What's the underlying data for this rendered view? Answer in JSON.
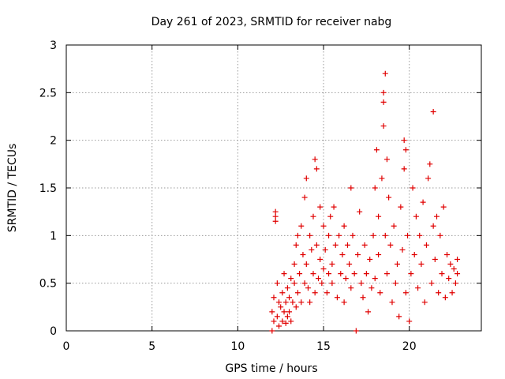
{
  "chart_data": {
    "type": "scatter",
    "title": "Day 261 of 2023, SRMTID for receiver nabg",
    "xlabel": "GPS time / hours",
    "ylabel": "SRMTID / TECUs",
    "xlim": [
      0,
      24.2
    ],
    "ylim": [
      0,
      3
    ],
    "xticks": [
      0,
      5,
      10,
      15,
      20
    ],
    "yticks": [
      0,
      0.5,
      1,
      1.5,
      2,
      2.5,
      3
    ],
    "xtick_labels": [
      "0",
      "5",
      "10",
      "15",
      "20"
    ],
    "ytick_labels": [
      "0",
      "0.5",
      "1",
      "1.5",
      "2",
      "2.5",
      "3"
    ],
    "grid": true,
    "marker": "+",
    "color": "#e00000",
    "series": [
      {
        "name": "SRMTID",
        "points": [
          [
            12.0,
            0.0
          ],
          [
            12.0,
            0.2
          ],
          [
            12.1,
            0.1
          ],
          [
            12.1,
            0.35
          ],
          [
            12.2,
            1.2
          ],
          [
            12.2,
            1.25
          ],
          [
            12.2,
            1.15
          ],
          [
            12.3,
            0.5
          ],
          [
            12.3,
            0.15
          ],
          [
            12.4,
            0.3
          ],
          [
            12.4,
            0.05
          ],
          [
            12.5,
            0.25
          ],
          [
            12.6,
            0.4
          ],
          [
            12.6,
            0.1
          ],
          [
            12.7,
            0.2
          ],
          [
            12.7,
            0.6
          ],
          [
            12.8,
            0.3
          ],
          [
            12.8,
            0.08
          ],
          [
            12.9,
            0.45
          ],
          [
            12.9,
            0.15
          ],
          [
            13.0,
            0.35
          ],
          [
            13.0,
            0.2
          ],
          [
            13.1,
            0.55
          ],
          [
            13.1,
            0.1
          ],
          [
            13.2,
            0.3
          ],
          [
            13.3,
            0.5
          ],
          [
            13.3,
            0.7
          ],
          [
            13.4,
            0.25
          ],
          [
            13.4,
            0.9
          ],
          [
            13.5,
            0.4
          ],
          [
            13.5,
            1.0
          ],
          [
            13.6,
            0.6
          ],
          [
            13.7,
            0.3
          ],
          [
            13.7,
            1.1
          ],
          [
            13.8,
            0.8
          ],
          [
            13.9,
            0.5
          ],
          [
            13.9,
            1.4
          ],
          [
            14.0,
            0.7
          ],
          [
            14.0,
            1.6
          ],
          [
            14.1,
            0.45
          ],
          [
            14.2,
            1.0
          ],
          [
            14.2,
            0.3
          ],
          [
            14.3,
            0.85
          ],
          [
            14.4,
            1.2
          ],
          [
            14.4,
            0.6
          ],
          [
            14.5,
            1.8
          ],
          [
            14.5,
            0.4
          ],
          [
            14.6,
            1.7
          ],
          [
            14.6,
            0.9
          ],
          [
            14.7,
            0.55
          ],
          [
            14.8,
            1.3
          ],
          [
            14.8,
            0.75
          ],
          [
            14.9,
            0.5
          ],
          [
            15.0,
            1.1
          ],
          [
            15.0,
            0.65
          ],
          [
            15.1,
            0.85
          ],
          [
            15.2,
            0.4
          ],
          [
            15.3,
            1.0
          ],
          [
            15.3,
            0.6
          ],
          [
            15.4,
            1.2
          ],
          [
            15.5,
            0.7
          ],
          [
            15.5,
            0.5
          ],
          [
            15.6,
            1.3
          ],
          [
            15.7,
            0.9
          ],
          [
            15.8,
            0.35
          ],
          [
            15.9,
            1.0
          ],
          [
            16.0,
            0.6
          ],
          [
            16.1,
            0.8
          ],
          [
            16.2,
            0.3
          ],
          [
            16.2,
            1.1
          ],
          [
            16.3,
            0.55
          ],
          [
            16.4,
            0.9
          ],
          [
            16.5,
            0.7
          ],
          [
            16.6,
            1.5
          ],
          [
            16.6,
            0.45
          ],
          [
            16.7,
            1.0
          ],
          [
            16.8,
            0.6
          ],
          [
            16.9,
            0.0
          ],
          [
            17.0,
            0.8
          ],
          [
            17.1,
            1.25
          ],
          [
            17.2,
            0.5
          ],
          [
            17.3,
            0.35
          ],
          [
            17.4,
            0.9
          ],
          [
            17.5,
            0.6
          ],
          [
            17.6,
            0.2
          ],
          [
            17.7,
            0.75
          ],
          [
            17.8,
            0.45
          ],
          [
            17.9,
            1.0
          ],
          [
            18.0,
            1.5
          ],
          [
            18.0,
            0.55
          ],
          [
            18.1,
            1.9
          ],
          [
            18.2,
            0.8
          ],
          [
            18.2,
            1.2
          ],
          [
            18.3,
            0.4
          ],
          [
            18.4,
            1.6
          ],
          [
            18.5,
            2.15
          ],
          [
            18.5,
            2.5
          ],
          [
            18.5,
            2.4
          ],
          [
            18.6,
            2.7
          ],
          [
            18.6,
            1.0
          ],
          [
            18.7,
            1.8
          ],
          [
            18.7,
            0.6
          ],
          [
            18.8,
            1.4
          ],
          [
            18.9,
            0.9
          ],
          [
            19.0,
            0.3
          ],
          [
            19.1,
            1.1
          ],
          [
            19.2,
            0.5
          ],
          [
            19.3,
            0.7
          ],
          [
            19.4,
            0.15
          ],
          [
            19.5,
            1.3
          ],
          [
            19.6,
            0.85
          ],
          [
            19.7,
            1.7
          ],
          [
            19.7,
            2.0
          ],
          [
            19.8,
            1.9
          ],
          [
            19.8,
            0.4
          ],
          [
            19.9,
            1.0
          ],
          [
            20.0,
            0.1
          ],
          [
            20.1,
            0.6
          ],
          [
            20.2,
            1.5
          ],
          [
            20.3,
            0.8
          ],
          [
            20.4,
            1.2
          ],
          [
            20.5,
            0.45
          ],
          [
            20.6,
            1.0
          ],
          [
            20.7,
            0.7
          ],
          [
            20.8,
            1.35
          ],
          [
            20.9,
            0.3
          ],
          [
            21.0,
            0.9
          ],
          [
            21.1,
            1.6
          ],
          [
            21.2,
            1.75
          ],
          [
            21.3,
            0.5
          ],
          [
            21.4,
            2.3
          ],
          [
            21.4,
            1.1
          ],
          [
            21.5,
            0.75
          ],
          [
            21.6,
            1.2
          ],
          [
            21.7,
            0.4
          ],
          [
            21.8,
            1.0
          ],
          [
            21.9,
            0.6
          ],
          [
            22.0,
            1.3
          ],
          [
            22.1,
            0.35
          ],
          [
            22.2,
            0.8
          ],
          [
            22.3,
            0.55
          ],
          [
            22.4,
            0.7
          ],
          [
            22.5,
            0.4
          ],
          [
            22.6,
            0.65
          ],
          [
            22.7,
            0.5
          ],
          [
            22.8,
            0.6
          ],
          [
            22.8,
            0.75
          ]
        ]
      }
    ]
  }
}
